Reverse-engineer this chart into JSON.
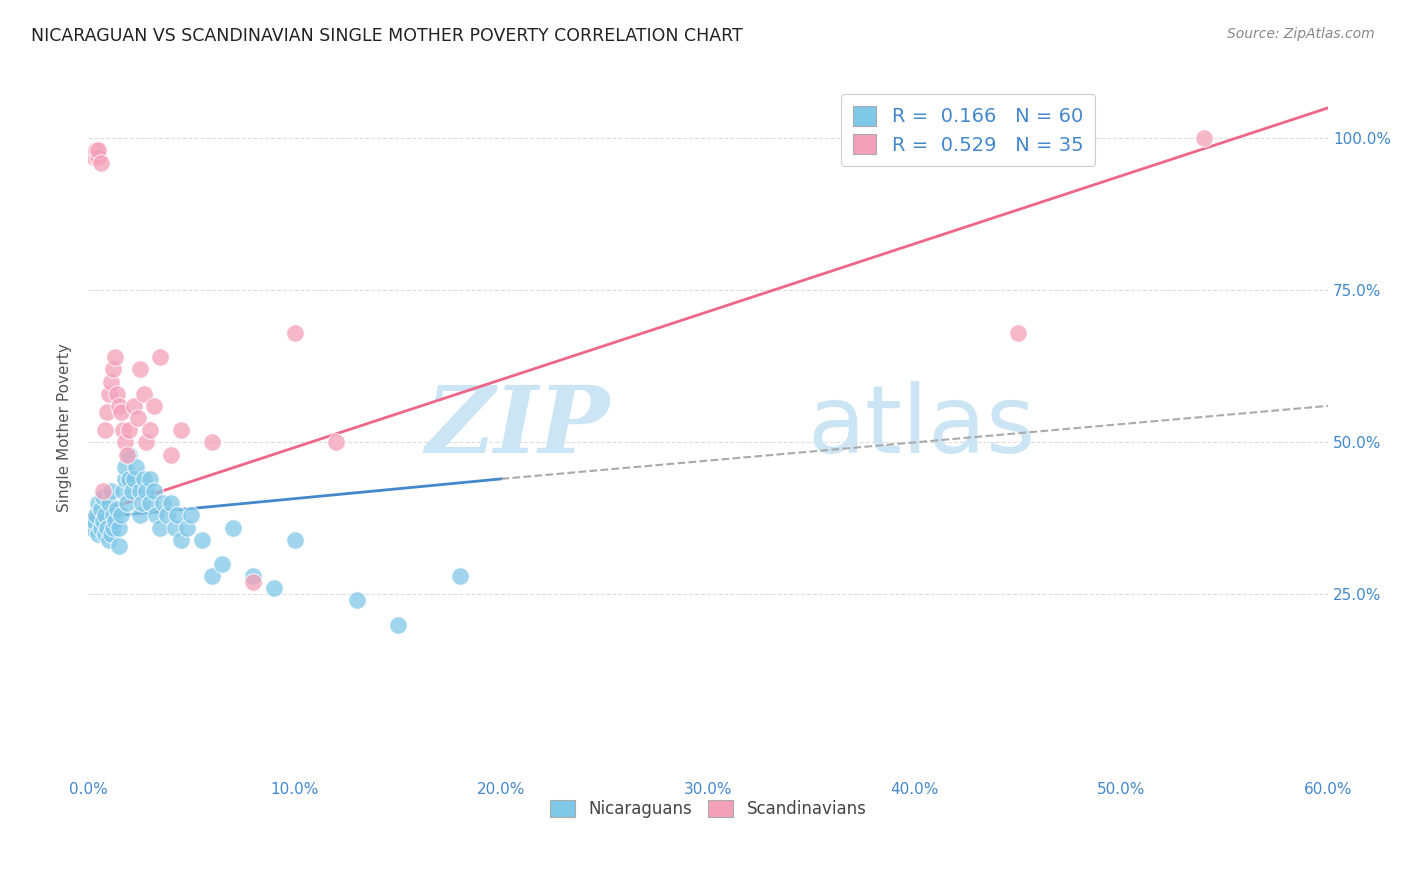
{
  "title": "NICARAGUAN VS SCANDINAVIAN SINGLE MOTHER POVERTY CORRELATION CHART",
  "source": "Source: ZipAtlas.com",
  "ylabel": "Single Mother Poverty",
  "xlim": [
    0.0,
    0.6
  ],
  "ylim": [
    -0.05,
    1.1
  ],
  "xtick_labels": [
    "0.0%",
    "10.0%",
    "20.0%",
    "30.0%",
    "40.0%",
    "50.0%",
    "60.0%"
  ],
  "xtick_vals": [
    0.0,
    0.1,
    0.2,
    0.3,
    0.4,
    0.5,
    0.6
  ],
  "ytick_labels": [
    "25.0%",
    "50.0%",
    "75.0%",
    "100.0%"
  ],
  "ytick_vals": [
    0.25,
    0.5,
    0.75,
    1.0
  ],
  "legend_labels": [
    "Nicaraguans",
    "Scandinavians"
  ],
  "r_nicaraguan": 0.166,
  "n_nicaraguan": 60,
  "r_scandinavian": 0.529,
  "n_scandinavian": 35,
  "color_nicaraguan": "#7fc8e8",
  "color_scandinavian": "#f4a0b8",
  "trendline_nicaraguan_color": "#4488cc",
  "trendline_scandinavian_color": "#ee6688",
  "dashed_line_color": "#aaaaaa",
  "background_color": "#ffffff",
  "grid_color": "#dddddd",
  "title_color": "#222222",
  "axis_label_color": "#4488cc",
  "ylabel_color": "#555555",
  "watermark_zip": "ZIP",
  "watermark_atlas": "atlas",
  "watermark_color": "#cce5f5",
  "nicaraguan_x": [
    0.002,
    0.003,
    0.004,
    0.005,
    0.005,
    0.006,
    0.006,
    0.007,
    0.007,
    0.008,
    0.008,
    0.009,
    0.01,
    0.01,
    0.011,
    0.011,
    0.012,
    0.012,
    0.013,
    0.014,
    0.015,
    0.015,
    0.016,
    0.017,
    0.018,
    0.018,
    0.019,
    0.02,
    0.02,
    0.021,
    0.022,
    0.023,
    0.025,
    0.025,
    0.026,
    0.027,
    0.028,
    0.03,
    0.03,
    0.032,
    0.033,
    0.035,
    0.036,
    0.038,
    0.04,
    0.042,
    0.043,
    0.045,
    0.048,
    0.05,
    0.055,
    0.06,
    0.065,
    0.07,
    0.08,
    0.09,
    0.1,
    0.13,
    0.15,
    0.18
  ],
  "nicaraguan_y": [
    0.36,
    0.37,
    0.38,
    0.35,
    0.4,
    0.36,
    0.39,
    0.37,
    0.41,
    0.35,
    0.38,
    0.36,
    0.34,
    0.4,
    0.35,
    0.42,
    0.36,
    0.38,
    0.37,
    0.39,
    0.33,
    0.36,
    0.38,
    0.42,
    0.44,
    0.46,
    0.4,
    0.44,
    0.48,
    0.42,
    0.44,
    0.46,
    0.38,
    0.42,
    0.4,
    0.44,
    0.42,
    0.4,
    0.44,
    0.42,
    0.38,
    0.36,
    0.4,
    0.38,
    0.4,
    0.36,
    0.38,
    0.34,
    0.36,
    0.38,
    0.34,
    0.28,
    0.3,
    0.36,
    0.28,
    0.26,
    0.34,
    0.24,
    0.2,
    0.28
  ],
  "scandinavian_x": [
    0.003,
    0.004,
    0.005,
    0.005,
    0.006,
    0.007,
    0.008,
    0.009,
    0.01,
    0.011,
    0.012,
    0.013,
    0.014,
    0.015,
    0.016,
    0.017,
    0.018,
    0.019,
    0.02,
    0.022,
    0.024,
    0.025,
    0.027,
    0.028,
    0.03,
    0.032,
    0.035,
    0.04,
    0.045,
    0.06,
    0.08,
    0.1,
    0.12,
    0.45,
    0.54
  ],
  "scandinavian_y": [
    0.97,
    0.98,
    0.97,
    0.98,
    0.96,
    0.42,
    0.52,
    0.55,
    0.58,
    0.6,
    0.62,
    0.64,
    0.58,
    0.56,
    0.55,
    0.52,
    0.5,
    0.48,
    0.52,
    0.56,
    0.54,
    0.62,
    0.58,
    0.5,
    0.52,
    0.56,
    0.64,
    0.48,
    0.52,
    0.5,
    0.27,
    0.68,
    0.5,
    0.68,
    1.0
  ],
  "trendline_nic_x0": 0.0,
  "trendline_nic_x1": 0.2,
  "trendline_nic_x1_dashed": 0.6,
  "trendline_sca_x0": 0.0,
  "trendline_sca_x1": 0.6
}
